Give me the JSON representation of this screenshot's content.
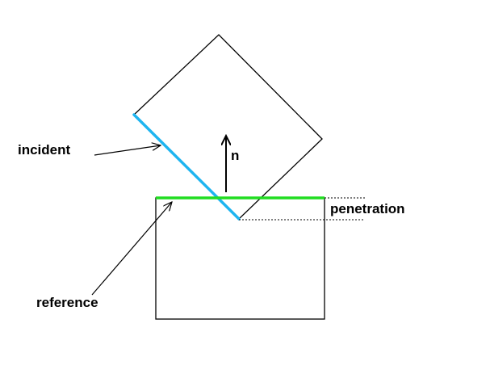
{
  "labels": {
    "incident": "incident",
    "reference": "reference",
    "normal": "n",
    "penetration": "penetration"
  },
  "colors": {
    "incident_edge": "#1eb4f0",
    "reference_edge": "#22dd22",
    "outline": "#000000",
    "background": "#ffffff"
  }
}
